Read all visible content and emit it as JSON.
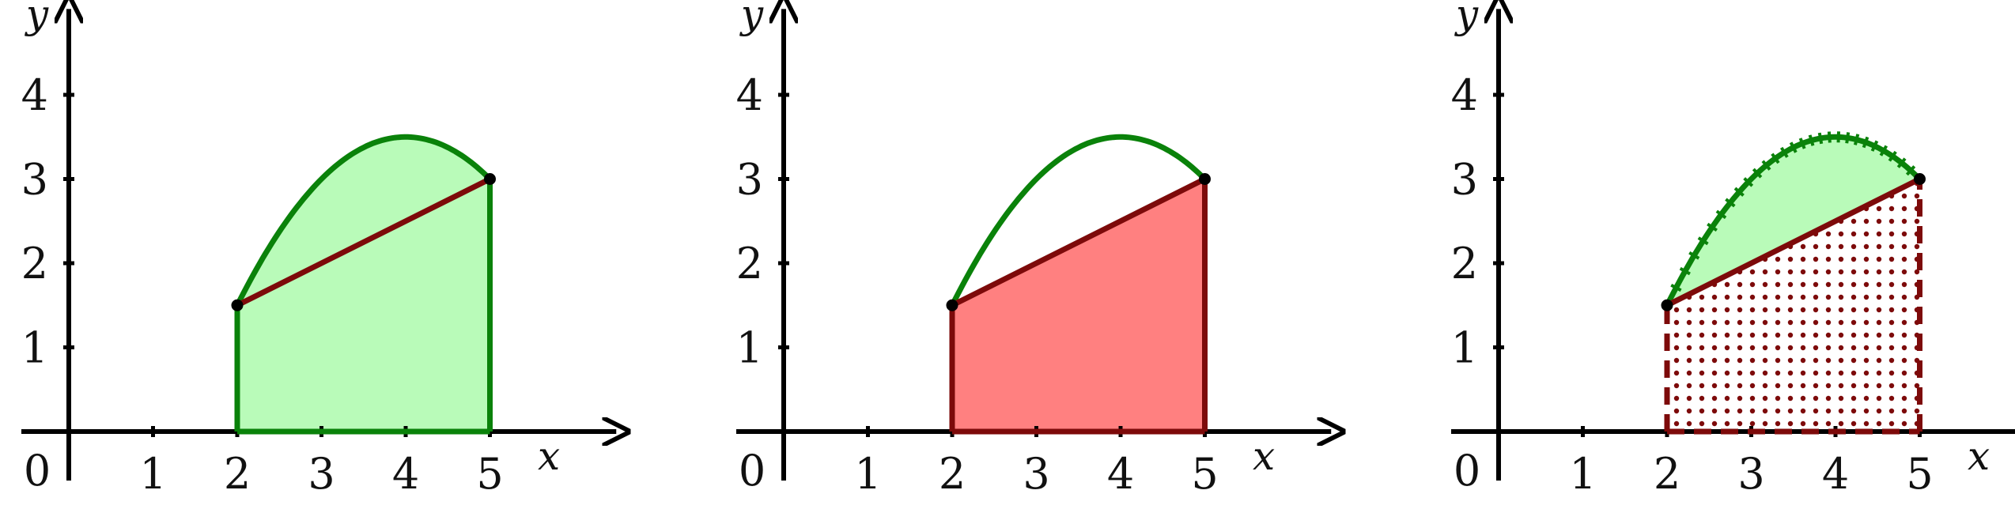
{
  "colors": {
    "axis": "#000000",
    "curve_green": "#0a820a",
    "fill_green": "#b9fbb9",
    "line_red": "#7d0a0a",
    "fill_red": "#ff8080",
    "dots": "#7d0a0a"
  },
  "chart_data": [
    {
      "type": "area",
      "title": "",
      "xlabel": "x",
      "ylabel": "y",
      "origin_label": "0",
      "x_ticks": [
        "1",
        "2",
        "3",
        "4",
        "5"
      ],
      "y_ticks": [
        "1",
        "2",
        "3",
        "4"
      ],
      "xlim": [
        0,
        6
      ],
      "ylim": [
        0,
        5
      ],
      "interval": [
        2,
        5
      ],
      "curve": {
        "a": 2,
        "b": 5,
        "ya": 1.5,
        "vertex_x": 4,
        "vertex_y": 3.5,
        "yb": 3
      },
      "chord": [
        [
          2,
          1.5
        ],
        [
          5,
          3
        ]
      ],
      "endpoints": [
        [
          2,
          1.5
        ],
        [
          5,
          3
        ]
      ],
      "shading": "area under the curve"
    },
    {
      "type": "area",
      "title": "",
      "xlabel": "x",
      "ylabel": "y",
      "origin_label": "0",
      "x_ticks": [
        "1",
        "2",
        "3",
        "4",
        "5"
      ],
      "y_ticks": [
        "1",
        "2",
        "3",
        "4"
      ],
      "xlim": [
        0,
        6
      ],
      "ylim": [
        0,
        5
      ],
      "interval": [
        2,
        5
      ],
      "curve": {
        "a": 2,
        "b": 5,
        "ya": 1.5,
        "vertex_x": 4,
        "vertex_y": 3.5,
        "yb": 3
      },
      "chord": [
        [
          2,
          1.5
        ],
        [
          5,
          3
        ]
      ],
      "endpoints": [
        [
          2,
          1.5
        ],
        [
          5,
          3
        ]
      ],
      "shading": "trapezoid under the chord"
    },
    {
      "type": "area",
      "title": "",
      "xlabel": "x",
      "ylabel": "y",
      "origin_label": "0",
      "x_ticks": [
        "1",
        "2",
        "3",
        "4",
        "5"
      ],
      "y_ticks": [
        "1",
        "2",
        "3",
        "4"
      ],
      "xlim": [
        0,
        6
      ],
      "ylim": [
        0,
        5
      ],
      "interval": [
        2,
        5
      ],
      "curve": {
        "a": 2,
        "b": 5,
        "ya": 1.5,
        "vertex_x": 4,
        "vertex_y": 3.5,
        "yb": 3
      },
      "chord": [
        [
          2,
          1.5
        ],
        [
          5,
          3
        ]
      ],
      "endpoints": [
        [
          2,
          1.5
        ],
        [
          5,
          3
        ]
      ],
      "shading": "region between curve and chord, dotted trapezoid under chord"
    }
  ]
}
